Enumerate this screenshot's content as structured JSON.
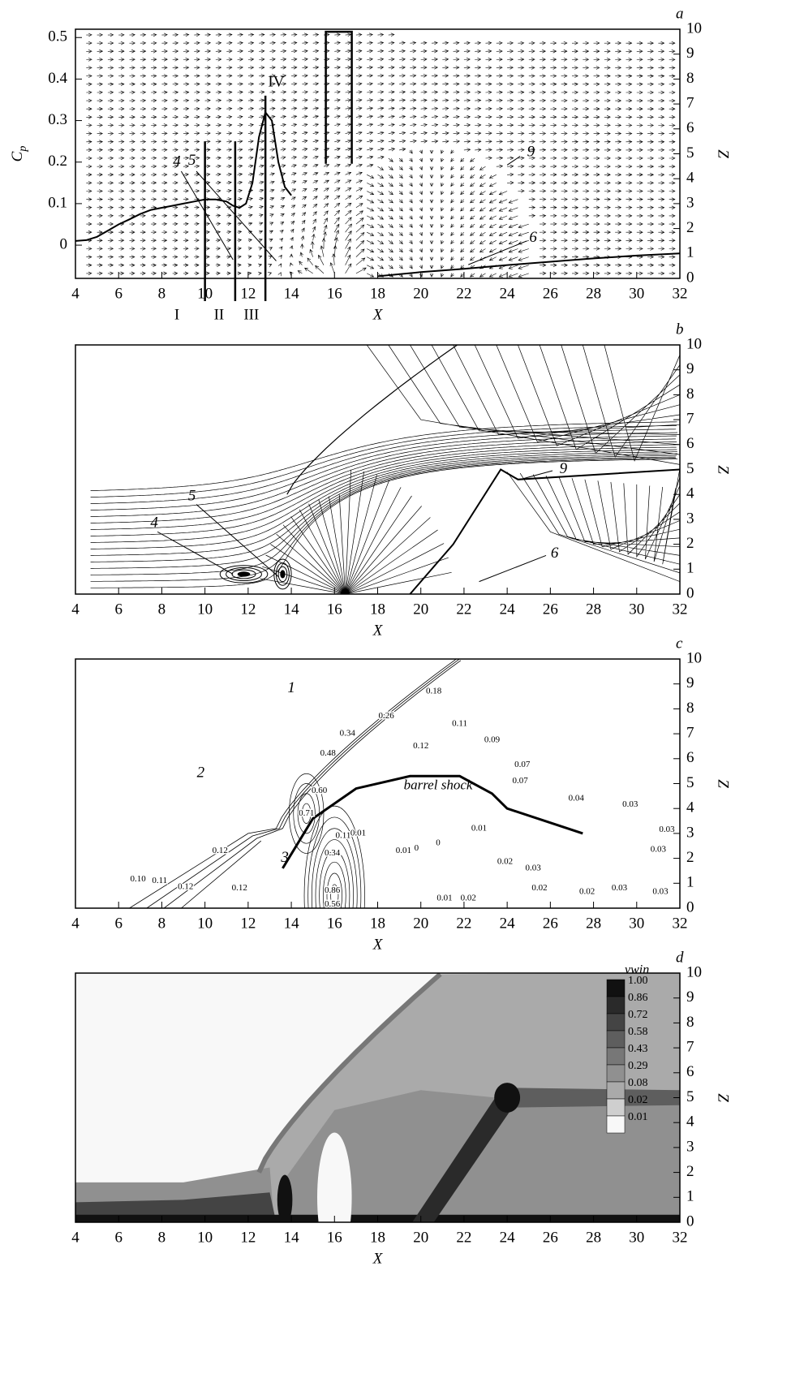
{
  "chart_data": [
    {
      "type": "line",
      "letter": "a",
      "xlabel": "X",
      "ylabel": "C",
      "ylabel_subscript": "p",
      "y2label": "Z",
      "xlim": [
        4,
        32
      ],
      "xticks": [
        4,
        6,
        8,
        10,
        12,
        14,
        16,
        18,
        20,
        22,
        24,
        26,
        28,
        30,
        32
      ],
      "ylim": [
        -0.08,
        0.52
      ],
      "yticks": [
        0,
        0.1,
        0.2,
        0.3,
        0.4,
        0.5
      ],
      "y2lim": [
        0,
        10
      ],
      "y2ticks": [
        0,
        1,
        2,
        3,
        4,
        5,
        6,
        7,
        8,
        9,
        10
      ],
      "x": [
        4,
        4.5,
        5,
        5.5,
        6,
        6.5,
        7,
        7.5,
        8,
        8.5,
        9,
        9.5,
        10,
        10.5,
        11,
        11.3,
        11.6,
        11.9,
        12.2,
        12.5,
        12.8,
        13.1,
        13.4,
        13.7,
        14,
        16,
        18,
        20,
        22,
        24,
        26,
        28,
        30,
        32
      ],
      "values": [
        0.01,
        0.012,
        0.02,
        0.035,
        0.05,
        0.062,
        0.075,
        0.085,
        0.09,
        0.095,
        0.1,
        0.105,
        0.11,
        0.11,
        0.105,
        0.095,
        0.09,
        0.1,
        0.15,
        0.26,
        0.32,
        0.3,
        0.2,
        0.14,
        0.12,
        null,
        -0.075,
        -0.065,
        -0.057,
        -0.048,
        -0.04,
        -0.032,
        -0.025,
        -0.02
      ],
      "color": "#000000",
      "sections": [
        {
          "x": 10,
          "top": 0.25
        },
        {
          "x": 11.4,
          "top": 0.25
        },
        {
          "x": 12.8,
          "top": 0.36
        }
      ],
      "labels": [
        "4",
        "5",
        "9",
        "6",
        "IV",
        "I",
        "II",
        "III"
      ]
    },
    {
      "type": "streamline",
      "letter": "b",
      "xlabel": "X",
      "y2label": "Z",
      "xlim": [
        4,
        32
      ],
      "xticks": [
        4,
        6,
        8,
        10,
        12,
        14,
        16,
        18,
        20,
        22,
        24,
        26,
        28,
        30,
        32
      ],
      "y2lim": [
        0,
        10
      ],
      "y2ticks": [
        0,
        1,
        2,
        3,
        4,
        5,
        6,
        7,
        8,
        9,
        10
      ],
      "labels": [
        "4",
        "5",
        "9",
        "6"
      ]
    },
    {
      "type": "contour",
      "letter": "c",
      "xlabel": "X",
      "y2label": "Z",
      "xlim": [
        4,
        32
      ],
      "xticks": [
        4,
        6,
        8,
        10,
        12,
        14,
        16,
        18,
        20,
        22,
        24,
        26,
        28,
        30,
        32
      ],
      "y2lim": [
        0,
        10
      ],
      "y2ticks": [
        0,
        1,
        2,
        3,
        4,
        5,
        6,
        7,
        8,
        9,
        10
      ],
      "labels": [
        "1",
        "2",
        "3",
        "barrel shock"
      ],
      "contour_labels": [
        0.18,
        0.26,
        0.12,
        0.11,
        0.09,
        0.07,
        0.07,
        0.34,
        0.48,
        {
          "value": 0.6,
          "label": "0.60"
        },
        0.71,
        0.04,
        0.03,
        0.03,
        0.03,
        0.01,
        0.01,
        0,
        0,
        0.01,
        0.02,
        0.03,
        0.02,
        0.02,
        0.03,
        0.03,
        0.01,
        0.02,
        {
          "value": 0.1,
          "label": "0.10"
        },
        0.11,
        0.12,
        0.12,
        0.12,
        0.11,
        0.34,
        0.86,
        0.56
      ]
    },
    {
      "type": "filled-contour",
      "letter": "d",
      "xlabel": "X",
      "y2label": "Z",
      "xlim": [
        4,
        32
      ],
      "xticks": [
        4,
        6,
        8,
        10,
        12,
        14,
        16,
        18,
        20,
        22,
        24,
        26,
        28,
        30,
        32
      ],
      "y2lim": [
        0,
        10
      ],
      "y2ticks": [
        0,
        1,
        2,
        3,
        4,
        5,
        6,
        7,
        8,
        9,
        10
      ],
      "legend": {
        "title": "vwin",
        "levels": [
          {
            "value": 1,
            "label": "1.00"
          },
          0.86,
          0.72,
          0.58,
          0.43,
          0.29,
          0.08,
          0.02,
          0.01
        ],
        "colors": [
          "#111111",
          "#2a2a2a",
          "#444444",
          "#5e5e5e",
          "#777777",
          "#909090",
          "#aaaaaa",
          "#cfcfcf",
          "#f8f8f8"
        ]
      }
    }
  ]
}
